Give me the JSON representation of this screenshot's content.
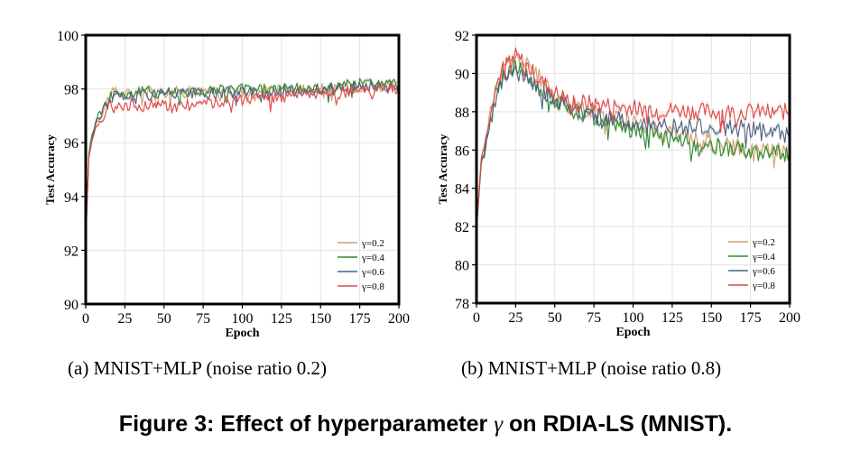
{
  "figure_caption": {
    "prefix": "Figure 3: Effect of hyperparameter ",
    "symbol": "γ",
    "suffix": " on RDIA-LS (MNIST)."
  },
  "chart_data": [
    {
      "type": "line",
      "caption": "(a)  MNIST+MLP (noise ratio 0.2)",
      "xlabel": "Epoch",
      "ylabel": "Test Accuracy",
      "xlim": [
        0,
        200
      ],
      "ylim": [
        90,
        100
      ],
      "xticks": [
        0,
        25,
        50,
        75,
        100,
        125,
        150,
        175,
        200
      ],
      "yticks": [
        90,
        92,
        94,
        96,
        98,
        100
      ],
      "grid": true,
      "legend_position": "bottom-right",
      "series": [
        {
          "name": "γ=0.2",
          "color": "#d4a070",
          "x": [
            0,
            2,
            4,
            7,
            10,
            14,
            18,
            25,
            35,
            50,
            75,
            100,
            125,
            150,
            175,
            200
          ],
          "y": [
            92.5,
            95.6,
            96.2,
            96.8,
            97.1,
            97.6,
            97.9,
            97.8,
            97.9,
            97.9,
            97.9,
            97.9,
            98.0,
            98.0,
            98.1,
            98.1
          ]
        },
        {
          "name": "γ=0.4",
          "color": "#2e8b2e",
          "x": [
            0,
            2,
            4,
            7,
            10,
            14,
            18,
            25,
            35,
            50,
            75,
            100,
            125,
            150,
            175,
            200
          ],
          "y": [
            92.6,
            95.6,
            96.3,
            96.9,
            97.2,
            97.6,
            97.9,
            97.8,
            97.9,
            97.9,
            97.9,
            98.0,
            98.0,
            98.0,
            98.2,
            98.2
          ]
        },
        {
          "name": "γ=0.6",
          "color": "#506080",
          "x": [
            0,
            2,
            4,
            7,
            10,
            14,
            18,
            25,
            35,
            50,
            75,
            100,
            125,
            150,
            175,
            200
          ],
          "y": [
            92.5,
            95.5,
            96.2,
            96.8,
            97.1,
            97.5,
            97.8,
            97.7,
            97.8,
            97.8,
            97.8,
            97.9,
            97.9,
            98.0,
            98.1,
            98.1
          ]
        },
        {
          "name": "γ=0.8",
          "color": "#e04848",
          "x": [
            0,
            2,
            4,
            7,
            10,
            14,
            18,
            25,
            35,
            50,
            75,
            100,
            125,
            150,
            175,
            200
          ],
          "y": [
            92.3,
            95.4,
            96.1,
            96.6,
            96.9,
            97.3,
            97.5,
            97.4,
            97.4,
            97.4,
            97.5,
            97.6,
            97.7,
            97.8,
            97.9,
            98.0
          ]
        }
      ]
    },
    {
      "type": "line",
      "caption": "(b)  MNIST+MLP (noise ratio 0.8)",
      "xlabel": "Epoch",
      "ylabel": "Test Accuracy",
      "xlim": [
        0,
        200
      ],
      "ylim": [
        78,
        92
      ],
      "xticks": [
        0,
        25,
        50,
        75,
        100,
        125,
        150,
        175,
        200
      ],
      "yticks": [
        78,
        80,
        82,
        84,
        86,
        88,
        90,
        92
      ],
      "grid": true,
      "legend_position": "bottom-right",
      "series": [
        {
          "name": "γ=0.2",
          "color": "#d4a070",
          "x": [
            0,
            3,
            6,
            10,
            15,
            20,
            25,
            30,
            40,
            50,
            60,
            75,
            90,
            100,
            125,
            150,
            175,
            200
          ],
          "y": [
            81.8,
            85.5,
            86.5,
            88.5,
            89.8,
            90.5,
            90.8,
            90.6,
            89.8,
            88.8,
            88.3,
            88.0,
            87.6,
            87.4,
            86.9,
            86.4,
            86.0,
            86.0
          ]
        },
        {
          "name": "γ=0.4",
          "color": "#2e8b2e",
          "x": [
            0,
            3,
            6,
            10,
            15,
            20,
            25,
            30,
            40,
            50,
            60,
            75,
            90,
            100,
            125,
            150,
            175,
            200
          ],
          "y": [
            81.8,
            85.3,
            86.3,
            88.3,
            89.6,
            90.2,
            90.4,
            90.1,
            89.2,
            88.5,
            88.1,
            87.7,
            87.3,
            87.1,
            86.5,
            86.2,
            85.9,
            85.8
          ]
        },
        {
          "name": "γ=0.6",
          "color": "#506080",
          "x": [
            0,
            3,
            6,
            10,
            15,
            20,
            25,
            30,
            40,
            50,
            60,
            75,
            90,
            100,
            125,
            150,
            175,
            200
          ],
          "y": [
            81.8,
            85.3,
            86.2,
            88.0,
            89.3,
            89.9,
            90.1,
            89.9,
            89.3,
            88.6,
            88.2,
            87.9,
            87.6,
            87.4,
            87.2,
            87.2,
            87.1,
            87.0
          ]
        },
        {
          "name": "γ=0.8",
          "color": "#e04848",
          "x": [
            0,
            3,
            6,
            10,
            15,
            20,
            25,
            30,
            40,
            50,
            60,
            75,
            90,
            100,
            125,
            150,
            175,
            200
          ],
          "y": [
            81.8,
            85.6,
            86.6,
            88.6,
            90.0,
            90.6,
            90.9,
            90.6,
            89.7,
            89.0,
            88.6,
            88.4,
            88.3,
            88.2,
            88.1,
            88.0,
            88.0,
            88.0
          ]
        }
      ]
    }
  ]
}
